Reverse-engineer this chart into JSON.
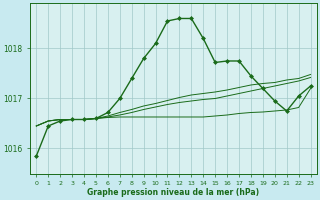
{
  "title": "Graphe pression niveau de la mer (hPa)",
  "bg_color": "#c8eaf0",
  "plot_bg_color": "#d8f0f0",
  "grid_color": "#a0c8c8",
  "line_color": "#1a6b1a",
  "xlim": [
    -0.5,
    23.5
  ],
  "ylim": [
    1015.5,
    1018.9
  ],
  "yticks": [
    1016,
    1017,
    1018
  ],
  "xticks": [
    0,
    1,
    2,
    3,
    4,
    5,
    6,
    7,
    8,
    9,
    10,
    11,
    12,
    13,
    14,
    15,
    16,
    17,
    18,
    19,
    20,
    21,
    22,
    23
  ],
  "main_line": [
    1015.85,
    1016.45,
    1016.55,
    1016.58,
    1016.58,
    1016.6,
    1016.72,
    1017.0,
    1017.4,
    1017.8,
    1018.1,
    1018.55,
    1018.6,
    1018.6,
    1018.2,
    1017.72,
    1017.75,
    1017.75,
    1017.45,
    1017.2,
    1016.95,
    1016.75,
    1017.05,
    1017.25
  ],
  "band_line1": [
    1016.45,
    1016.55,
    1016.58,
    1016.58,
    1016.58,
    1016.6,
    1016.62,
    1016.63,
    1016.63,
    1016.63,
    1016.63,
    1016.63,
    1016.63,
    1016.63,
    1016.63,
    1016.65,
    1016.67,
    1016.7,
    1016.72,
    1016.73,
    1016.75,
    1016.77,
    1016.82,
    1017.2
  ],
  "band_line2": [
    1016.45,
    1016.55,
    1016.58,
    1016.58,
    1016.58,
    1016.6,
    1016.63,
    1016.67,
    1016.72,
    1016.78,
    1016.83,
    1016.88,
    1016.92,
    1016.95,
    1016.98,
    1017.0,
    1017.05,
    1017.1,
    1017.15,
    1017.2,
    1017.25,
    1017.3,
    1017.35,
    1017.42
  ],
  "band_line3": [
    1016.45,
    1016.55,
    1016.58,
    1016.58,
    1016.58,
    1016.6,
    1016.65,
    1016.72,
    1016.78,
    1016.85,
    1016.9,
    1016.96,
    1017.02,
    1017.07,
    1017.1,
    1017.13,
    1017.17,
    1017.22,
    1017.27,
    1017.3,
    1017.32,
    1017.37,
    1017.4,
    1017.48
  ]
}
